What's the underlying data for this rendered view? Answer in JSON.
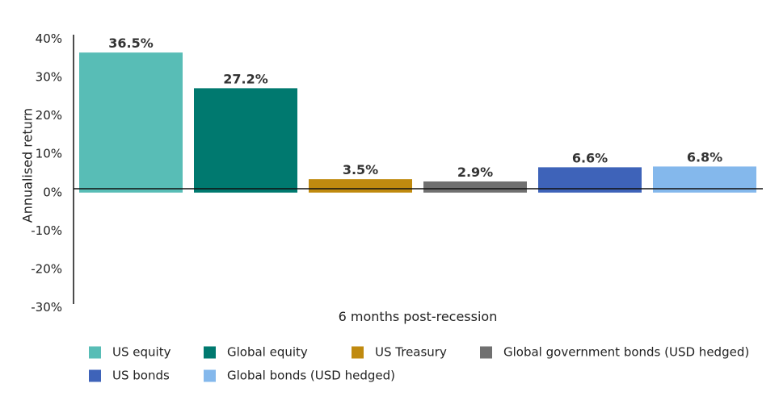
{
  "chart_data": {
    "type": "bar",
    "xlabel": "6 months post-recession",
    "ylabel": "Annualised return",
    "ylim": [
      -30,
      40
    ],
    "yticks": [
      40,
      30,
      20,
      10,
      0,
      -10,
      -20,
      -30
    ],
    "ytick_labels": [
      "40%",
      "30%",
      "20%",
      "10%",
      "0%",
      "-10%",
      "-20%",
      "-30%"
    ],
    "grid": false,
    "legend_position": "bottom",
    "categories": [
      "US equity",
      "Global equity",
      "US Treasury",
      "Global government bonds (USD hedged)",
      "US bonds",
      "Global bonds (USD hedged)"
    ],
    "values": [
      36.5,
      27.2,
      3.5,
      2.9,
      6.6,
      6.8
    ],
    "value_labels": [
      "36.5%",
      "27.2%",
      "3.5%",
      "2.9%",
      "6.6%",
      "6.8%"
    ],
    "colors": [
      "#58bdb6",
      "#00796f",
      "#c08a0f",
      "#707070",
      "#3e63b9",
      "#84b8ec"
    ]
  }
}
